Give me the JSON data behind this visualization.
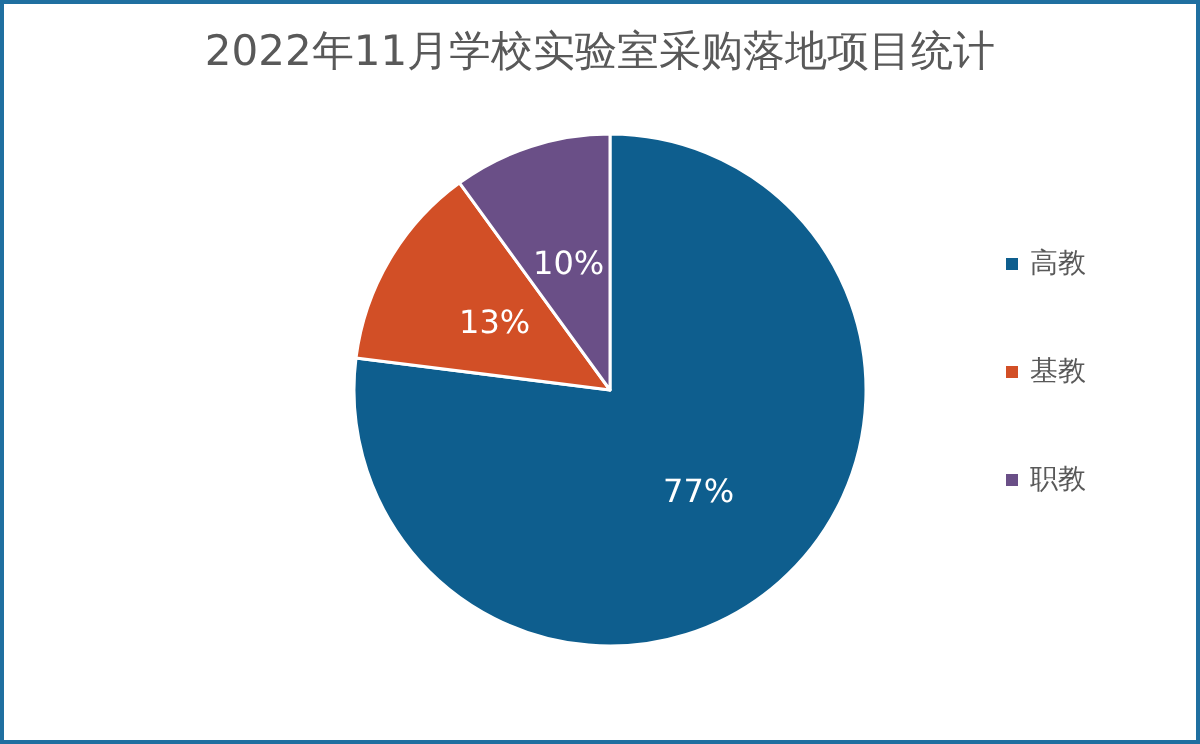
{
  "chart_data": {
    "type": "pie",
    "title": "2022年11月学校实验室采购落地项目统计",
    "categories": [
      "高教",
      "基教",
      "职教"
    ],
    "values": [
      77,
      13,
      10
    ],
    "colors": [
      "#0e5e8e",
      "#d24f26",
      "#6a4f87"
    ],
    "value_labels": [
      "77%",
      "13%",
      "10%"
    ],
    "legend": "right"
  }
}
